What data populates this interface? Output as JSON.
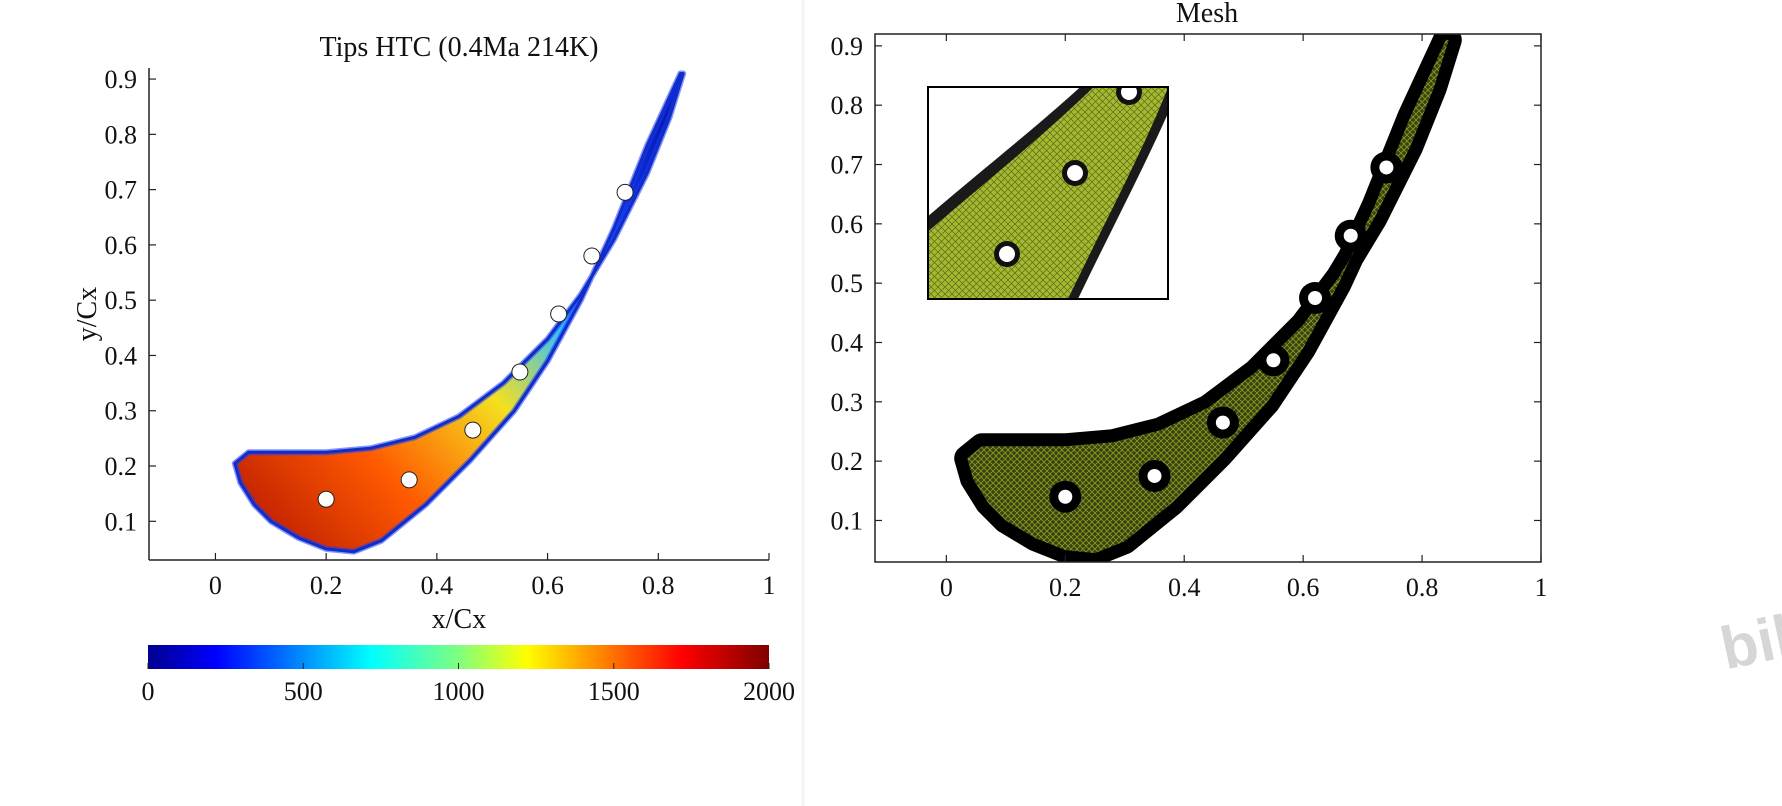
{
  "chart_data": [
    {
      "type": "heatmap",
      "title": "Tips HTC (0.4Ma 214K)",
      "xlabel": "x/Cx",
      "ylabel": "y/Cx",
      "xlim": [
        -0.12,
        1.0
      ],
      "ylim": [
        0.03,
        0.92
      ],
      "xticks": [
        "0",
        "0.2",
        "0.4",
        "0.6",
        "0.8",
        "1"
      ],
      "xtick_values": [
        0,
        0.2,
        0.4,
        0.6,
        0.8,
        1.0
      ],
      "yticks": [
        "0.1",
        "0.2",
        "0.3",
        "0.4",
        "0.5",
        "0.6",
        "0.7",
        "0.8",
        "0.9"
      ],
      "ytick_values": [
        0.1,
        0.2,
        0.3,
        0.4,
        0.5,
        0.6,
        0.7,
        0.8,
        0.9
      ],
      "colorbar": {
        "range": [
          0,
          2000
        ],
        "ticks": [
          "0",
          "500",
          "1000",
          "1500",
          "2000"
        ],
        "tick_values": [
          0,
          500,
          1000,
          1500,
          2000
        ],
        "colormap": "jet"
      },
      "holes": [
        {
          "x": 0.2,
          "y": 0.14
        },
        {
          "x": 0.35,
          "y": 0.175
        },
        {
          "x": 0.465,
          "y": 0.265
        },
        {
          "x": 0.55,
          "y": 0.37
        },
        {
          "x": 0.62,
          "y": 0.475
        },
        {
          "x": 0.68,
          "y": 0.58
        },
        {
          "x": 0.74,
          "y": 0.695
        }
      ]
    },
    {
      "type": "scatter",
      "title": "Mesh",
      "xlabel": "",
      "ylabel": "",
      "xlim": [
        -0.12,
        1.0
      ],
      "ylim": [
        0.03,
        0.92
      ],
      "xticks": [
        "0",
        "0.2",
        "0.4",
        "0.6",
        "0.8",
        "1"
      ],
      "xtick_values": [
        0,
        0.2,
        0.4,
        0.6,
        0.8,
        1.0
      ],
      "yticks": [
        "0.1",
        "0.2",
        "0.3",
        "0.4",
        "0.5",
        "0.6",
        "0.7",
        "0.8",
        "0.9"
      ],
      "ytick_values": [
        0.1,
        0.2,
        0.3,
        0.4,
        0.5,
        0.6,
        0.7,
        0.8,
        0.9
      ],
      "holes": [
        {
          "x": 0.2,
          "y": 0.14
        },
        {
          "x": 0.35,
          "y": 0.175
        },
        {
          "x": 0.465,
          "y": 0.265
        },
        {
          "x": 0.55,
          "y": 0.37
        },
        {
          "x": 0.62,
          "y": 0.475
        },
        {
          "x": 0.68,
          "y": 0.58
        },
        {
          "x": 0.74,
          "y": 0.695
        }
      ]
    }
  ],
  "blade_profile": {
    "pressure_side": [
      [
        0.84,
        0.91
      ],
      [
        0.78,
        0.78
      ],
      [
        0.72,
        0.63
      ],
      [
        0.66,
        0.5
      ],
      [
        0.6,
        0.39
      ],
      [
        0.54,
        0.3
      ],
      [
        0.46,
        0.21
      ],
      [
        0.38,
        0.13
      ],
      [
        0.3,
        0.065
      ],
      [
        0.25,
        0.045
      ],
      [
        0.2,
        0.05
      ],
      [
        0.15,
        0.07
      ],
      [
        0.1,
        0.1
      ],
      [
        0.07,
        0.13
      ],
      [
        0.045,
        0.17
      ],
      [
        0.035,
        0.205
      ]
    ],
    "suction_side": [
      [
        0.035,
        0.205
      ],
      [
        0.06,
        0.225
      ],
      [
        0.12,
        0.225
      ],
      [
        0.2,
        0.225
      ],
      [
        0.28,
        0.232
      ],
      [
        0.36,
        0.252
      ],
      [
        0.44,
        0.29
      ],
      [
        0.52,
        0.35
      ],
      [
        0.6,
        0.43
      ],
      [
        0.66,
        0.51
      ],
      [
        0.72,
        0.61
      ],
      [
        0.78,
        0.73
      ],
      [
        0.82,
        0.83
      ],
      [
        0.845,
        0.91
      ]
    ]
  },
  "colors": {
    "mesh_fill": "#8a9a24",
    "mesh_inset_fill": "#9fb22c",
    "blade_edge": "#000000"
  },
  "watermark": "bili"
}
